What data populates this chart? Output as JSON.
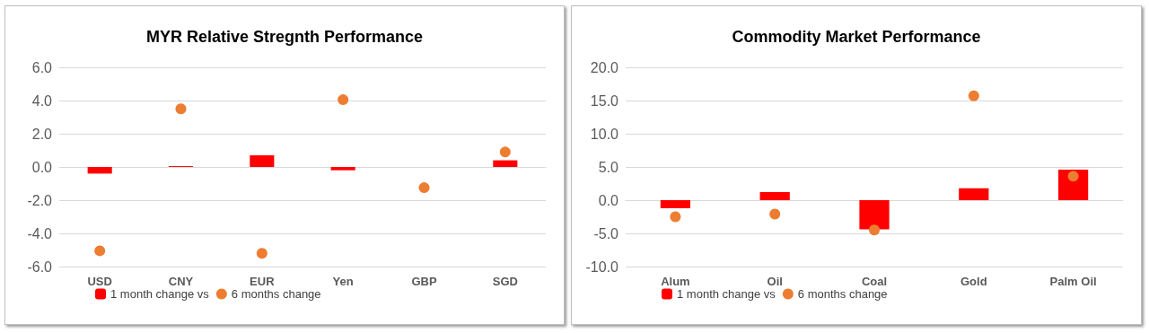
{
  "chart_data": [
    {
      "type": "bar",
      "title": "MYR Relative Stregnth Performance",
      "categories": [
        "USD",
        "CNY",
        "EUR",
        "Yen",
        "GBP",
        "SGD"
      ],
      "series": [
        {
          "name": "1 month change vs",
          "color": "#ff0000",
          "values": [
            -0.4,
            0.05,
            0.7,
            -0.2,
            0,
            0.4
          ]
        },
        {
          "name": "6 months change",
          "type": "scatter",
          "color": "#ed7d31",
          "values": [
            -5.05,
            3.5,
            -5.2,
            4.05,
            -1.25,
            0.9
          ]
        }
      ],
      "ylim": [
        -6,
        6
      ],
      "yticks": [
        {
          "value": -6,
          "label": "-6.0"
        },
        {
          "value": -4,
          "label": "-4.0"
        },
        {
          "value": -2,
          "label": "-2.0"
        },
        {
          "value": 0,
          "label": "0.0"
        },
        {
          "value": 2,
          "label": "2.0"
        },
        {
          "value": 4,
          "label": "4.0"
        },
        {
          "value": 6,
          "label": "6.0"
        }
      ],
      "grid": "y",
      "legend": "bottom left",
      "marker": "circle"
    },
    {
      "type": "bar",
      "title": "Commodity Market Performance",
      "categories": [
        "Alum",
        "Oil",
        "Coal",
        "Gold",
        "Palm Oil"
      ],
      "series": [
        {
          "name": "1 month change vs",
          "color": "#ff0000",
          "values": [
            -1.2,
            1.2,
            -4.4,
            1.8,
            4.6
          ]
        },
        {
          "name": "6 months change",
          "type": "scatter",
          "color": "#ed7d31",
          "values": [
            -2.5,
            -2.1,
            -4.5,
            15.7,
            3.6
          ]
        }
      ],
      "ylim": [
        -10,
        20
      ],
      "yticks": [
        {
          "value": -10,
          "label": "-10.0"
        },
        {
          "value": -5,
          "label": "-5.0"
        },
        {
          "value": 0,
          "label": "0.0"
        },
        {
          "value": 5,
          "label": "5.0"
        },
        {
          "value": 10,
          "label": "10.0"
        },
        {
          "value": 15,
          "label": "15.0"
        },
        {
          "value": 20,
          "label": "20.0"
        }
      ],
      "grid": "y",
      "legend": "bottom left",
      "marker": "circle"
    }
  ]
}
